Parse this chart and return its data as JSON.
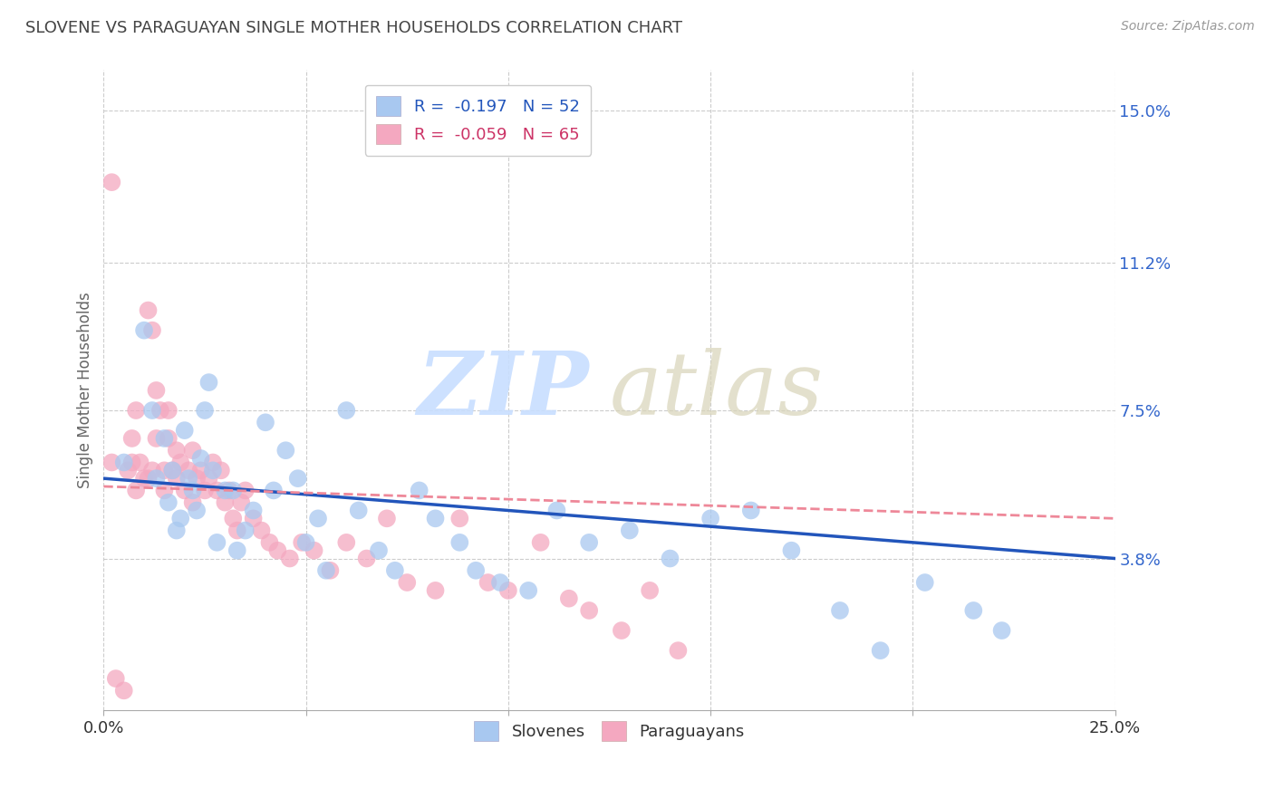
{
  "title": "SLOVENE VS PARAGUAYAN SINGLE MOTHER HOUSEHOLDS CORRELATION CHART",
  "source": "Source: ZipAtlas.com",
  "ylabel": "Single Mother Households",
  "xlim": [
    0.0,
    0.25
  ],
  "ylim": [
    0.0,
    0.16
  ],
  "xticks": [
    0.0,
    0.05,
    0.1,
    0.15,
    0.2,
    0.25
  ],
  "xticklabels": [
    "0.0%",
    "",
    "",
    "",
    "",
    "25.0%"
  ],
  "ytick_labels_right": [
    "15.0%",
    "11.2%",
    "7.5%",
    "3.8%"
  ],
  "ytick_values_right": [
    0.15,
    0.112,
    0.075,
    0.038
  ],
  "legend_blue_label": "R =  -0.197   N = 52",
  "legend_pink_label": "R =  -0.059   N = 65",
  "legend_x_label": "Slovenes",
  "legend_pink_x_label": "Paraguayans",
  "blue_color": "#A8C8F0",
  "pink_color": "#F4A8C0",
  "blue_line_color": "#2255BB",
  "pink_line_color": "#EE8899",
  "grid_color": "#CCCCCC",
  "background_color": "#FFFFFF",
  "blue_scatter_x": [
    0.005,
    0.01,
    0.012,
    0.013,
    0.015,
    0.016,
    0.017,
    0.018,
    0.019,
    0.02,
    0.021,
    0.022,
    0.023,
    0.024,
    0.025,
    0.026,
    0.027,
    0.028,
    0.03,
    0.032,
    0.033,
    0.035,
    0.037,
    0.04,
    0.042,
    0.045,
    0.048,
    0.05,
    0.053,
    0.055,
    0.06,
    0.063,
    0.068,
    0.072,
    0.078,
    0.082,
    0.088,
    0.092,
    0.098,
    0.105,
    0.112,
    0.12,
    0.13,
    0.14,
    0.15,
    0.16,
    0.17,
    0.182,
    0.192,
    0.203,
    0.215,
    0.222
  ],
  "blue_scatter_y": [
    0.062,
    0.095,
    0.075,
    0.058,
    0.068,
    0.052,
    0.06,
    0.045,
    0.048,
    0.07,
    0.058,
    0.055,
    0.05,
    0.063,
    0.075,
    0.082,
    0.06,
    0.042,
    0.055,
    0.055,
    0.04,
    0.045,
    0.05,
    0.072,
    0.055,
    0.065,
    0.058,
    0.042,
    0.048,
    0.035,
    0.075,
    0.05,
    0.04,
    0.035,
    0.055,
    0.048,
    0.042,
    0.035,
    0.032,
    0.03,
    0.05,
    0.042,
    0.045,
    0.038,
    0.048,
    0.05,
    0.04,
    0.025,
    0.015,
    0.032,
    0.025,
    0.02
  ],
  "pink_scatter_x": [
    0.002,
    0.003,
    0.005,
    0.006,
    0.007,
    0.007,
    0.008,
    0.008,
    0.009,
    0.01,
    0.011,
    0.011,
    0.012,
    0.012,
    0.013,
    0.013,
    0.014,
    0.015,
    0.015,
    0.016,
    0.016,
    0.017,
    0.018,
    0.018,
    0.019,
    0.02,
    0.021,
    0.022,
    0.022,
    0.023,
    0.024,
    0.025,
    0.026,
    0.027,
    0.028,
    0.029,
    0.03,
    0.031,
    0.032,
    0.033,
    0.034,
    0.035,
    0.037,
    0.039,
    0.041,
    0.043,
    0.046,
    0.049,
    0.052,
    0.056,
    0.06,
    0.065,
    0.07,
    0.075,
    0.082,
    0.088,
    0.095,
    0.1,
    0.108,
    0.115,
    0.12,
    0.128,
    0.135,
    0.142,
    0.002
  ],
  "pink_scatter_y": [
    0.062,
    0.008,
    0.005,
    0.06,
    0.062,
    0.068,
    0.075,
    0.055,
    0.062,
    0.058,
    0.1,
    0.058,
    0.095,
    0.06,
    0.08,
    0.068,
    0.075,
    0.055,
    0.06,
    0.068,
    0.075,
    0.06,
    0.058,
    0.065,
    0.062,
    0.055,
    0.06,
    0.052,
    0.065,
    0.058,
    0.06,
    0.055,
    0.058,
    0.062,
    0.055,
    0.06,
    0.052,
    0.055,
    0.048,
    0.045,
    0.052,
    0.055,
    0.048,
    0.045,
    0.042,
    0.04,
    0.038,
    0.042,
    0.04,
    0.035,
    0.042,
    0.038,
    0.048,
    0.032,
    0.03,
    0.048,
    0.032,
    0.03,
    0.042,
    0.028,
    0.025,
    0.02,
    0.03,
    0.015,
    0.132
  ],
  "blue_trend_x": [
    0.0,
    0.25
  ],
  "blue_trend_y": [
    0.058,
    0.038
  ],
  "pink_trend_x": [
    0.0,
    0.25
  ],
  "pink_trend_y": [
    0.056,
    0.048
  ]
}
